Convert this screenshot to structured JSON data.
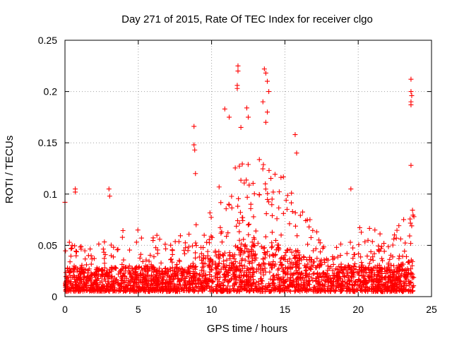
{
  "chart_data": {
    "type": "scatter",
    "title": "Day 271 of 2015, Rate Of TEC Index for receiver clgo",
    "xlabel": "GPS time / hours",
    "ylabel": "ROTI / TECUs",
    "xlim": [
      0,
      25
    ],
    "ylim": [
      0,
      0.25
    ],
    "grid": true,
    "marker": "+",
    "color": "#ff0000",
    "x_ticks": [
      0,
      5,
      10,
      15,
      20,
      25
    ],
    "x_tick_labels": [
      "0",
      "5",
      "10",
      "15",
      "20",
      "25"
    ],
    "y_ticks": [
      0,
      0.05,
      0.1,
      0.15,
      0.2,
      0.25
    ],
    "y_tick_labels": [
      "0",
      "0.05",
      "0.1",
      "0.15",
      "0.2",
      "0.25"
    ],
    "series": [
      {
        "name": "ROTI",
        "x_range": [
          0,
          23.8
        ],
        "n_points": 2600,
        "envelope": [
          {
            "x": 0.0,
            "low": 0.005,
            "typ": 0.02,
            "high": 0.06
          },
          {
            "x": 0.5,
            "low": 0.005,
            "typ": 0.02,
            "high": 0.05
          },
          {
            "x": 1.5,
            "low": 0.005,
            "typ": 0.02,
            "high": 0.05
          },
          {
            "x": 3.0,
            "low": 0.005,
            "typ": 0.02,
            "high": 0.06
          },
          {
            "x": 5.0,
            "low": 0.005,
            "typ": 0.022,
            "high": 0.07
          },
          {
            "x": 7.0,
            "low": 0.005,
            "typ": 0.02,
            "high": 0.055
          },
          {
            "x": 8.5,
            "low": 0.005,
            "typ": 0.022,
            "high": 0.065
          },
          {
            "x": 10.0,
            "low": 0.005,
            "typ": 0.03,
            "high": 0.1
          },
          {
            "x": 11.5,
            "low": 0.005,
            "typ": 0.035,
            "high": 0.13
          },
          {
            "x": 13.5,
            "low": 0.005,
            "typ": 0.04,
            "high": 0.14
          },
          {
            "x": 15.0,
            "low": 0.005,
            "typ": 0.035,
            "high": 0.12
          },
          {
            "x": 16.5,
            "low": 0.005,
            "typ": 0.03,
            "high": 0.08
          },
          {
            "x": 18.0,
            "low": 0.005,
            "typ": 0.02,
            "high": 0.045
          },
          {
            "x": 20.0,
            "low": 0.005,
            "typ": 0.022,
            "high": 0.07
          },
          {
            "x": 22.0,
            "low": 0.005,
            "typ": 0.022,
            "high": 0.065
          },
          {
            "x": 23.8,
            "low": 0.005,
            "typ": 0.025,
            "high": 0.09
          }
        ],
        "highlights": [
          {
            "x": 0.0,
            "y": 0.092
          },
          {
            "x": 0.7,
            "y": 0.105
          },
          {
            "x": 0.7,
            "y": 0.102
          },
          {
            "x": 3.0,
            "y": 0.105
          },
          {
            "x": 3.05,
            "y": 0.098
          },
          {
            "x": 8.8,
            "y": 0.166
          },
          {
            "x": 8.8,
            "y": 0.148
          },
          {
            "x": 8.85,
            "y": 0.143
          },
          {
            "x": 8.9,
            "y": 0.12
          },
          {
            "x": 10.9,
            "y": 0.183
          },
          {
            "x": 11.2,
            "y": 0.175
          },
          {
            "x": 11.8,
            "y": 0.225
          },
          {
            "x": 11.8,
            "y": 0.22
          },
          {
            "x": 11.75,
            "y": 0.206
          },
          {
            "x": 11.75,
            "y": 0.203
          },
          {
            "x": 12.0,
            "y": 0.165
          },
          {
            "x": 12.4,
            "y": 0.184
          },
          {
            "x": 12.5,
            "y": 0.175
          },
          {
            "x": 13.6,
            "y": 0.222
          },
          {
            "x": 13.7,
            "y": 0.218
          },
          {
            "x": 13.8,
            "y": 0.21
          },
          {
            "x": 13.9,
            "y": 0.2
          },
          {
            "x": 13.5,
            "y": 0.19
          },
          {
            "x": 13.8,
            "y": 0.18
          },
          {
            "x": 13.7,
            "y": 0.17
          },
          {
            "x": 15.7,
            "y": 0.158
          },
          {
            "x": 15.8,
            "y": 0.14
          },
          {
            "x": 19.5,
            "y": 0.105
          },
          {
            "x": 23.6,
            "y": 0.212
          },
          {
            "x": 23.6,
            "y": 0.2
          },
          {
            "x": 23.65,
            "y": 0.196
          },
          {
            "x": 23.6,
            "y": 0.19
          },
          {
            "x": 23.6,
            "y": 0.187
          },
          {
            "x": 23.6,
            "y": 0.128
          }
        ]
      }
    ]
  }
}
